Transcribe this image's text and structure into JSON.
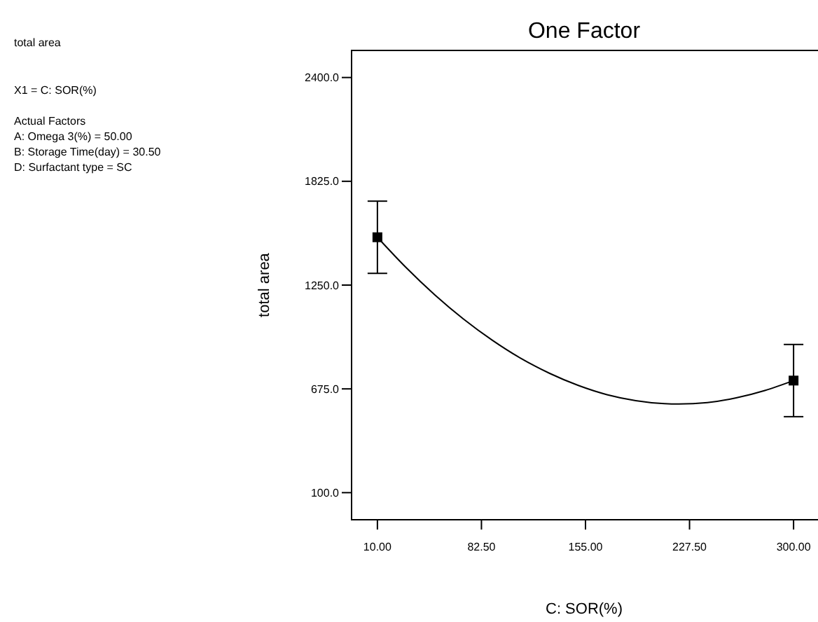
{
  "chart_data": {
    "type": "scatter",
    "title": "One Factor",
    "xlabel": "C: SOR(%)",
    "ylabel": "total area",
    "annotations": [
      "total area",
      "X1 = C: SOR(%)",
      "Actual Factors",
      "A: Omega 3(%) = 50.00",
      "B: Storage Time(day) = 30.50",
      "D: Surfactant type = SC"
    ],
    "xlim": [
      -8,
      318
    ],
    "ylim": [
      -50,
      2550
    ],
    "xticks": [
      {
        "value": 10,
        "label": "10.00"
      },
      {
        "value": 82.5,
        "label": "82.50"
      },
      {
        "value": 155,
        "label": "155.00"
      },
      {
        "value": 227.5,
        "label": "227.50"
      },
      {
        "value": 300,
        "label": "300.00"
      }
    ],
    "yticks": [
      {
        "value": 100,
        "label": "100.0"
      },
      {
        "value": 675,
        "label": "675.0"
      },
      {
        "value": 1250,
        "label": "1250.0"
      },
      {
        "value": 1825,
        "label": "1825.0"
      },
      {
        "value": 2400,
        "label": "2400.0"
      }
    ],
    "series": [
      {
        "type": "line",
        "color": "#000000",
        "marker": "none",
        "line_style": "solid",
        "x": [
          10,
          30,
          50,
          70,
          90,
          110,
          130,
          150,
          170,
          190,
          210,
          220,
          240,
          260,
          280,
          300
        ],
        "values": [
          1515,
          1347,
          1196,
          1062,
          945,
          844,
          761,
          694,
          643,
          610,
          593,
          591,
          599,
          625,
          666,
          721
        ]
      },
      {
        "color": "#000000",
        "marker": "square",
        "x": [
          10,
          300
        ],
        "values": [
          1515,
          721
        ],
        "errors": [
          200,
          200
        ]
      }
    ]
  }
}
